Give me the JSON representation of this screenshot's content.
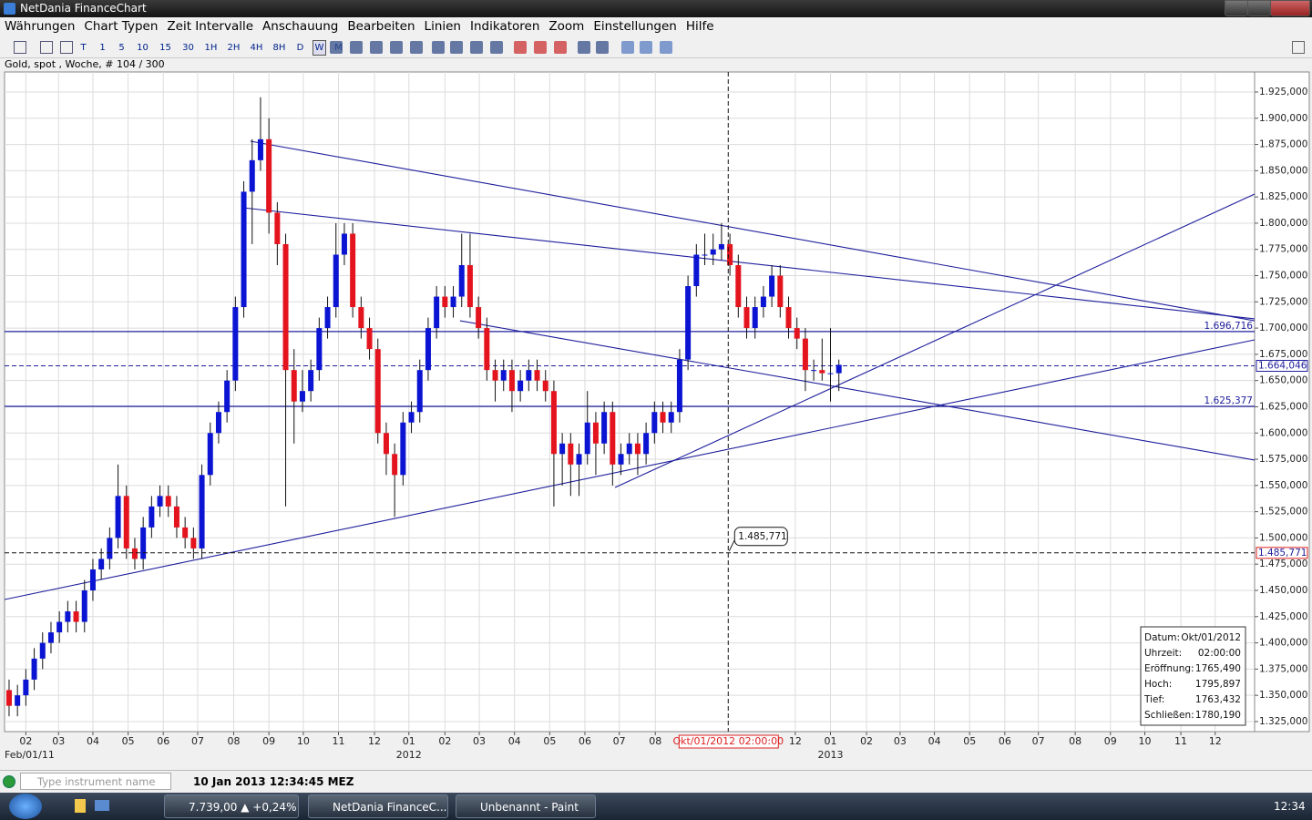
{
  "window": {
    "title": "NetDania FinanceChart"
  },
  "menu": [
    "Währungen",
    "Chart Typen",
    "Zeit Intervalle",
    "Anschauung",
    "Bearbeiten",
    "Linien",
    "Indikatoren",
    "Zoom",
    "Einstellungen",
    "Hilfe"
  ],
  "toolbar": [
    "T",
    "1",
    "5",
    "10",
    "15",
    "30",
    "1H",
    "2H",
    "4H",
    "8H",
    "D",
    "W",
    "M"
  ],
  "chart_info": "Gold, spot , Woche, # 104 / 300",
  "chart_data": {
    "type": "candlestick",
    "up_color": "#0a14d2",
    "down_color": "#e4141e",
    "line_color": "#1e1e9c",
    "xlim": [
      -0.54,
      148.6
    ],
    "xticks": [
      {
        "value": 2,
        "label": "02"
      },
      {
        "value": 5.9,
        "label": "03"
      },
      {
        "value": 10,
        "label": "04"
      },
      {
        "value": 14.2,
        "label": "05"
      },
      {
        "value": 18.4,
        "label": "06"
      },
      {
        "value": 22.5,
        "label": "07"
      },
      {
        "value": 26.8,
        "label": "08"
      },
      {
        "value": 31,
        "label": "09"
      },
      {
        "value": 35.1,
        "label": "10"
      },
      {
        "value": 39.3,
        "label": "11"
      },
      {
        "value": 43.6,
        "label": "12"
      },
      {
        "value": 47.7,
        "label": "01"
      },
      {
        "value": 52,
        "label": "02"
      },
      {
        "value": 56.1,
        "label": "03"
      },
      {
        "value": 60.3,
        "label": "04"
      },
      {
        "value": 64.5,
        "label": "05"
      },
      {
        "value": 68.7,
        "label": "06"
      },
      {
        "value": 72.8,
        "label": "07"
      },
      {
        "value": 77.1,
        "label": "08"
      },
      {
        "value": 93.8,
        "label": "12"
      },
      {
        "value": 98,
        "label": "01"
      },
      {
        "value": 102.3,
        "label": "02"
      },
      {
        "value": 106.3,
        "label": "03"
      },
      {
        "value": 110.4,
        "label": "04"
      },
      {
        "value": 114.6,
        "label": "05"
      },
      {
        "value": 118.8,
        "label": "06"
      },
      {
        "value": 122.8,
        "label": "07"
      },
      {
        "value": 127.2,
        "label": "08"
      },
      {
        "value": 131.4,
        "label": "09"
      },
      {
        "value": 135.5,
        "label": "10"
      },
      {
        "value": 139.8,
        "label": "11"
      },
      {
        "value": 143.9,
        "label": "12"
      }
    ],
    "x_captions": [
      {
        "value": -0.54,
        "label": "Feb/01/11"
      },
      {
        "value": 47.7,
        "label": "2012"
      },
      {
        "value": 98,
        "label": "2013"
      }
    ],
    "ylim": [
      1315.4,
      1944.1
    ],
    "yticks": [
      {
        "value": 1325,
        "label": "1.325,000"
      },
      {
        "value": 1350,
        "label": "1.350,000"
      },
      {
        "value": 1375,
        "label": "1.375,000"
      },
      {
        "value": 1400,
        "label": "1.400,000"
      },
      {
        "value": 1425,
        "label": "1.425,000"
      },
      {
        "value": 1450,
        "label": "1.450,000"
      },
      {
        "value": 1475,
        "label": "1.475,000"
      },
      {
        "value": 1500,
        "label": "1.500,000"
      },
      {
        "value": 1525,
        "label": "1.525,000"
      },
      {
        "value": 1550,
        "label": "1.550,000"
      },
      {
        "value": 1575,
        "label": "1.575,000"
      },
      {
        "value": 1600,
        "label": "1.600,000"
      },
      {
        "value": 1625,
        "label": "1.625,000"
      },
      {
        "value": 1650,
        "label": "1.650,000"
      },
      {
        "value": 1675,
        "label": "1.675,000"
      },
      {
        "value": 1700,
        "label": "1.700,000"
      },
      {
        "value": 1725,
        "label": "1.725,000"
      },
      {
        "value": 1750,
        "label": "1.750,000"
      },
      {
        "value": 1775,
        "label": "1.775,000"
      },
      {
        "value": 1800,
        "label": "1.800,000"
      },
      {
        "value": 1825,
        "label": "1.825,000"
      },
      {
        "value": 1850,
        "label": "1.850,000"
      },
      {
        "value": 1875,
        "label": "1.875,000"
      },
      {
        "value": 1900,
        "label": "1.900,000"
      },
      {
        "value": 1925,
        "label": "1.925,000"
      }
    ],
    "grid": true,
    "candles": [
      [
        1355,
        1365,
        1330,
        1340
      ],
      [
        1340,
        1360,
        1330,
        1350
      ],
      [
        1350,
        1375,
        1340,
        1365
      ],
      [
        1365,
        1395,
        1355,
        1385
      ],
      [
        1385,
        1410,
        1375,
        1400
      ],
      [
        1400,
        1420,
        1390,
        1410
      ],
      [
        1410,
        1430,
        1400,
        1420
      ],
      [
        1420,
        1440,
        1410,
        1430
      ],
      [
        1430,
        1440,
        1410,
        1420
      ],
      [
        1420,
        1460,
        1410,
        1450
      ],
      [
        1450,
        1480,
        1440,
        1470
      ],
      [
        1470,
        1490,
        1460,
        1480
      ],
      [
        1480,
        1510,
        1470,
        1500
      ],
      [
        1500,
        1570,
        1490,
        1540
      ],
      [
        1540,
        1550,
        1480,
        1490
      ],
      [
        1490,
        1500,
        1470,
        1480
      ],
      [
        1480,
        1520,
        1470,
        1510
      ],
      [
        1510,
        1540,
        1500,
        1530
      ],
      [
        1530,
        1550,
        1520,
        1540
      ],
      [
        1540,
        1550,
        1520,
        1530
      ],
      [
        1530,
        1540,
        1500,
        1510
      ],
      [
        1510,
        1520,
        1490,
        1500
      ],
      [
        1500,
        1510,
        1480,
        1490
      ],
      [
        1490,
        1570,
        1480,
        1560
      ],
      [
        1560,
        1610,
        1550,
        1600
      ],
      [
        1600,
        1630,
        1590,
        1620
      ],
      [
        1620,
        1660,
        1610,
        1650
      ],
      [
        1650,
        1730,
        1640,
        1720
      ],
      [
        1720,
        1840,
        1710,
        1830
      ],
      [
        1830,
        1880,
        1780,
        1860
      ],
      [
        1860,
        1920,
        1850,
        1880
      ],
      [
        1880,
        1900,
        1790,
        1810
      ],
      [
        1810,
        1820,
        1760,
        1780
      ],
      [
        1780,
        1790,
        1530,
        1660
      ],
      [
        1660,
        1680,
        1590,
        1630
      ],
      [
        1630,
        1660,
        1620,
        1640
      ],
      [
        1640,
        1670,
        1630,
        1660
      ],
      [
        1660,
        1710,
        1650,
        1700
      ],
      [
        1700,
        1730,
        1690,
        1720
      ],
      [
        1720,
        1800,
        1710,
        1770
      ],
      [
        1770,
        1800,
        1760,
        1790
      ],
      [
        1790,
        1800,
        1710,
        1720
      ],
      [
        1720,
        1730,
        1690,
        1700
      ],
      [
        1700,
        1710,
        1670,
        1680
      ],
      [
        1680,
        1690,
        1590,
        1600
      ],
      [
        1600,
        1610,
        1560,
        1580
      ],
      [
        1580,
        1590,
        1520,
        1560
      ],
      [
        1560,
        1620,
        1550,
        1610
      ],
      [
        1610,
        1630,
        1600,
        1620
      ],
      [
        1620,
        1670,
        1610,
        1660
      ],
      [
        1660,
        1710,
        1650,
        1700
      ],
      [
        1700,
        1740,
        1690,
        1730
      ],
      [
        1730,
        1740,
        1710,
        1720
      ],
      [
        1720,
        1740,
        1710,
        1730
      ],
      [
        1730,
        1790,
        1720,
        1760
      ],
      [
        1760,
        1790,
        1710,
        1720
      ],
      [
        1720,
        1730,
        1690,
        1700
      ],
      [
        1700,
        1710,
        1650,
        1660
      ],
      [
        1660,
        1670,
        1630,
        1650
      ],
      [
        1650,
        1670,
        1640,
        1660
      ],
      [
        1660,
        1670,
        1620,
        1640
      ],
      [
        1640,
        1660,
        1630,
        1650
      ],
      [
        1650,
        1670,
        1640,
        1660
      ],
      [
        1660,
        1670,
        1640,
        1650
      ],
      [
        1650,
        1660,
        1630,
        1640
      ],
      [
        1640,
        1650,
        1530,
        1580
      ],
      [
        1580,
        1600,
        1550,
        1590
      ],
      [
        1590,
        1600,
        1540,
        1570
      ],
      [
        1570,
        1590,
        1540,
        1580
      ],
      [
        1580,
        1640,
        1570,
        1610
      ],
      [
        1610,
        1620,
        1560,
        1590
      ],
      [
        1590,
        1630,
        1580,
        1620
      ],
      [
        1620,
        1630,
        1550,
        1570
      ],
      [
        1570,
        1590,
        1560,
        1580
      ],
      [
        1580,
        1600,
        1570,
        1590
      ],
      [
        1590,
        1600,
        1560,
        1580
      ],
      [
        1580,
        1610,
        1570,
        1600
      ],
      [
        1600,
        1630,
        1590,
        1620
      ],
      [
        1620,
        1630,
        1600,
        1610
      ],
      [
        1610,
        1630,
        1600,
        1620
      ],
      [
        1620,
        1680,
        1610,
        1670
      ],
      [
        1670,
        1750,
        1660,
        1740
      ],
      [
        1740,
        1780,
        1730,
        1770
      ],
      [
        1770,
        1790,
        1760,
        1770
      ],
      [
        1770,
        1790,
        1760,
        1775
      ],
      [
        1775,
        1800,
        1765,
        1780
      ],
      [
        1780,
        1790,
        1750,
        1760
      ],
      [
        1760,
        1770,
        1710,
        1720
      ],
      [
        1720,
        1730,
        1690,
        1700
      ],
      [
        1700,
        1730,
        1690,
        1720
      ],
      [
        1720,
        1740,
        1710,
        1730
      ],
      [
        1730,
        1760,
        1720,
        1750
      ],
      [
        1750,
        1760,
        1710,
        1720
      ],
      [
        1720,
        1730,
        1690,
        1700
      ],
      [
        1700,
        1710,
        1680,
        1690
      ],
      [
        1690,
        1700,
        1640,
        1660
      ],
      [
        1660,
        1670,
        1650,
        1660
      ],
      [
        1660,
        1690,
        1650,
        1657
      ],
      [
        1657,
        1700,
        1630,
        1657
      ],
      [
        1657,
        1670,
        1640,
        1665
      ]
    ],
    "trendlines": [
      [
        28.8,
        1878.1,
        148.6,
        1707.0
      ],
      [
        27.9,
        1814.7,
        148.6,
        1708.8
      ],
      [
        -0.54,
        1441.3,
        148.6,
        1688.8
      ],
      [
        72.3,
        1548.1,
        148.6,
        1827.7
      ],
      [
        53.8,
        1707.0,
        148.6,
        1574.2
      ]
    ],
    "levels": [
      {
        "value": 1696.716,
        "label": "1.696,716"
      },
      {
        "value": 1625.377,
        "label": "1.625,377"
      }
    ],
    "current": {
      "value": 1664.046,
      "label": "1.664,046"
    },
    "cursor": {
      "x": 85.8,
      "label": "Okt/01/2012 02:00:00",
      "value": 1485.771,
      "price_label": "1.485,771"
    },
    "info_box": [
      [
        "Datum:",
        "Okt/01/2012"
      ],
      [
        "Uhrzeit:",
        "02:00:00"
      ],
      [
        "Eröffnung:",
        "1765,490"
      ],
      [
        "Hoch:",
        "1795,897"
      ],
      [
        "Tief:",
        "1763,432"
      ],
      [
        "Schließen:",
        "1780,190"
      ]
    ]
  },
  "status": {
    "placeholder": "Type instrument name",
    "time": "10 Jan 2013 12:34:45 MEZ"
  },
  "taskbar": {
    "items": [
      "7.739,00 ▲ +0,24% |...",
      "NetDania FinanceC...",
      "Unbenannt - Paint"
    ],
    "clock": "12:34"
  }
}
